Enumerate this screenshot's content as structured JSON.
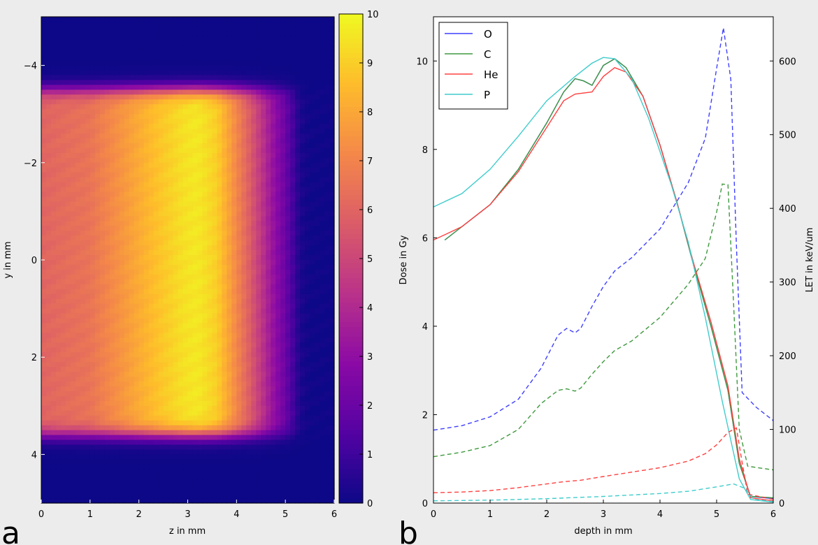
{
  "chart_data": [
    {
      "type": "heatmap",
      "panel_label": "a",
      "xlabel": "z in mm",
      "ylabel": "y in mm",
      "xlim": [
        0,
        6
      ],
      "ylim": [
        5,
        -5
      ],
      "xticks": [
        "0",
        "1",
        "2",
        "3",
        "4",
        "5",
        "6"
      ],
      "yticks": [
        "−4",
        "−2",
        "0",
        "2",
        "4"
      ],
      "colorbar": {
        "range": [
          0,
          10
        ],
        "ticks": [
          "0",
          "1",
          "2",
          "3",
          "4",
          "5",
          "6",
          "7",
          "8",
          "9",
          "10"
        ],
        "colormap": "plasma"
      },
      "field": {
        "y_extent": [
          -3.5,
          3.6
        ],
        "depth_profile": [
          [
            0.0,
            6.0
          ],
          [
            1.0,
            6.5
          ],
          [
            1.7,
            7.6
          ],
          [
            2.3,
            8.6
          ],
          [
            2.9,
            9.4
          ],
          [
            3.2,
            9.6
          ],
          [
            3.6,
            9.0
          ],
          [
            3.9,
            7.6
          ],
          [
            4.3,
            5.6
          ],
          [
            4.7,
            3.4
          ],
          [
            5.0,
            2.0
          ],
          [
            5.3,
            0.3
          ],
          [
            5.5,
            0.05
          ],
          [
            6.0,
            0.0
          ]
        ]
      }
    },
    {
      "type": "line",
      "panel_label": "b",
      "xlabel": "depth in mm",
      "ylabel": "Dose in Gy",
      "y2label": "LET in keV/um",
      "xlim": [
        0,
        6
      ],
      "ylim": [
        0,
        11
      ],
      "y2lim": [
        0,
        660
      ],
      "xticks": [
        "0",
        "1",
        "2",
        "3",
        "4",
        "5",
        "6"
      ],
      "yticks": [
        "0",
        "2",
        "4",
        "6",
        "8",
        "10"
      ],
      "y2ticks": [
        "0",
        "100",
        "200",
        "300",
        "400",
        "500",
        "600"
      ],
      "legend_position": "top-left",
      "legend": [
        "O",
        "C",
        "He",
        "P"
      ],
      "series": [
        {
          "name": "O",
          "axis": "dose",
          "color": "#3f3fff",
          "style": "solid",
          "points": [
            [
              0.2,
              5.95
            ],
            [
              0.5,
              6.25
            ],
            [
              1.0,
              6.75
            ],
            [
              1.5,
              7.55
            ],
            [
              2.0,
              8.6
            ],
            [
              2.3,
              9.3
            ],
            [
              2.5,
              9.6
            ],
            [
              2.65,
              9.55
            ],
            [
              2.8,
              9.45
            ],
            [
              3.0,
              9.9
            ],
            [
              3.2,
              10.05
            ],
            [
              3.4,
              9.85
            ],
            [
              3.7,
              9.2
            ],
            [
              4.0,
              8.1
            ],
            [
              4.3,
              6.8
            ],
            [
              4.6,
              5.35
            ],
            [
              4.9,
              4.0
            ],
            [
              5.2,
              2.55
            ],
            [
              5.4,
              0.9
            ],
            [
              5.6,
              0.15
            ],
            [
              6.0,
              0.1
            ]
          ]
        },
        {
          "name": "C",
          "axis": "dose",
          "color": "#3e993e",
          "style": "solid",
          "points": [
            [
              0.2,
              5.95
            ],
            [
              0.5,
              6.25
            ],
            [
              1.0,
              6.75
            ],
            [
              1.5,
              7.55
            ],
            [
              2.0,
              8.6
            ],
            [
              2.3,
              9.3
            ],
            [
              2.5,
              9.6
            ],
            [
              2.65,
              9.55
            ],
            [
              2.8,
              9.45
            ],
            [
              3.0,
              9.9
            ],
            [
              3.2,
              10.05
            ],
            [
              3.4,
              9.85
            ],
            [
              3.7,
              9.2
            ],
            [
              4.0,
              8.1
            ],
            [
              4.3,
              6.8
            ],
            [
              4.6,
              5.35
            ],
            [
              4.9,
              4.0
            ],
            [
              5.2,
              2.55
            ],
            [
              5.4,
              0.9
            ],
            [
              5.6,
              0.15
            ],
            [
              6.0,
              0.12
            ]
          ]
        },
        {
          "name": "He",
          "axis": "dose",
          "color": "#ff4040",
          "style": "solid",
          "points": [
            [
              0.0,
              5.95
            ],
            [
              0.5,
              6.25
            ],
            [
              1.0,
              6.75
            ],
            [
              1.5,
              7.5
            ],
            [
              2.0,
              8.5
            ],
            [
              2.3,
              9.1
            ],
            [
              2.5,
              9.25
            ],
            [
              2.8,
              9.3
            ],
            [
              3.0,
              9.65
            ],
            [
              3.2,
              9.85
            ],
            [
              3.4,
              9.75
            ],
            [
              3.7,
              9.2
            ],
            [
              4.0,
              8.1
            ],
            [
              4.3,
              6.8
            ],
            [
              4.6,
              5.4
            ],
            [
              4.9,
              4.1
            ],
            [
              5.2,
              2.65
            ],
            [
              5.4,
              1.0
            ],
            [
              5.6,
              0.12
            ],
            [
              6.0,
              0.05
            ]
          ]
        },
        {
          "name": "P",
          "axis": "dose",
          "color": "#3fcccc",
          "style": "solid",
          "points": [
            [
              0.0,
              6.7
            ],
            [
              0.5,
              7.0
            ],
            [
              1.0,
              7.55
            ],
            [
              1.5,
              8.3
            ],
            [
              2.0,
              9.1
            ],
            [
              2.5,
              9.65
            ],
            [
              2.8,
              9.95
            ],
            [
              3.0,
              10.08
            ],
            [
              3.2,
              10.05
            ],
            [
              3.5,
              9.6
            ],
            [
              3.8,
              8.7
            ],
            [
              4.2,
              7.2
            ],
            [
              4.5,
              5.9
            ],
            [
              4.8,
              4.2
            ],
            [
              5.1,
              2.3
            ],
            [
              5.4,
              0.55
            ],
            [
              5.6,
              0.08
            ],
            [
              6.0,
              0.02
            ]
          ]
        },
        {
          "name": "O",
          "axis": "let",
          "color": "#3f3fff",
          "style": "dashed",
          "points": [
            [
              0.0,
              99
            ],
            [
              0.5,
              105
            ],
            [
              1.0,
              117
            ],
            [
              1.5,
              141
            ],
            [
              1.9,
              183
            ],
            [
              2.2,
              228
            ],
            [
              2.35,
              237
            ],
            [
              2.5,
              231
            ],
            [
              2.6,
              237
            ],
            [
              2.8,
              267
            ],
            [
              3.0,
              294
            ],
            [
              3.2,
              315
            ],
            [
              3.5,
              333
            ],
            [
              4.0,
              372
            ],
            [
              4.5,
              435
            ],
            [
              4.8,
              495
            ],
            [
              5.0,
              590
            ],
            [
              5.12,
              645
            ],
            [
              5.25,
              575
            ],
            [
              5.35,
              350
            ],
            [
              5.45,
              150
            ],
            [
              5.7,
              130
            ],
            [
              6.0,
              112
            ]
          ]
        },
        {
          "name": "C",
          "axis": "let",
          "color": "#3e993e",
          "style": "dashed",
          "points": [
            [
              0.0,
              63
            ],
            [
              0.5,
              69
            ],
            [
              1.0,
              78
            ],
            [
              1.5,
              100
            ],
            [
              1.9,
              135
            ],
            [
              2.2,
              153
            ],
            [
              2.35,
              155
            ],
            [
              2.5,
              152
            ],
            [
              2.6,
              156
            ],
            [
              2.8,
              175
            ],
            [
              3.0,
              192
            ],
            [
              3.2,
              207
            ],
            [
              3.5,
              220
            ],
            [
              4.0,
              252
            ],
            [
              4.5,
              297
            ],
            [
              4.8,
              332
            ],
            [
              5.0,
              395
            ],
            [
              5.1,
              433
            ],
            [
              5.2,
              432
            ],
            [
              5.3,
              270
            ],
            [
              5.4,
              100
            ],
            [
              5.55,
              50
            ],
            [
              6.0,
              45
            ]
          ]
        },
        {
          "name": "He",
          "axis": "let",
          "color": "#ff4040",
          "style": "dashed",
          "points": [
            [
              0.0,
              14
            ],
            [
              0.5,
              15
            ],
            [
              1.0,
              17
            ],
            [
              1.5,
              21
            ],
            [
              2.0,
              26
            ],
            [
              2.3,
              29
            ],
            [
              2.6,
              31
            ],
            [
              3.0,
              36
            ],
            [
              3.5,
              42
            ],
            [
              4.0,
              48
            ],
            [
              4.5,
              57
            ],
            [
              4.8,
              67
            ],
            [
              5.0,
              79
            ],
            [
              5.2,
              96
            ],
            [
              5.35,
              102
            ],
            [
              5.45,
              55
            ],
            [
              5.55,
              12
            ],
            [
              6.0,
              5
            ]
          ]
        },
        {
          "name": "P",
          "axis": "let",
          "color": "#3fcccc",
          "style": "dashed",
          "points": [
            [
              0.0,
              3
            ],
            [
              1.0,
              4
            ],
            [
              2.0,
              6
            ],
            [
              3.0,
              9
            ],
            [
              4.0,
              13
            ],
            [
              4.5,
              16
            ],
            [
              5.0,
              22
            ],
            [
              5.3,
              26
            ],
            [
              5.5,
              20
            ],
            [
              5.65,
              5
            ],
            [
              6.0,
              2
            ]
          ]
        }
      ]
    }
  ]
}
